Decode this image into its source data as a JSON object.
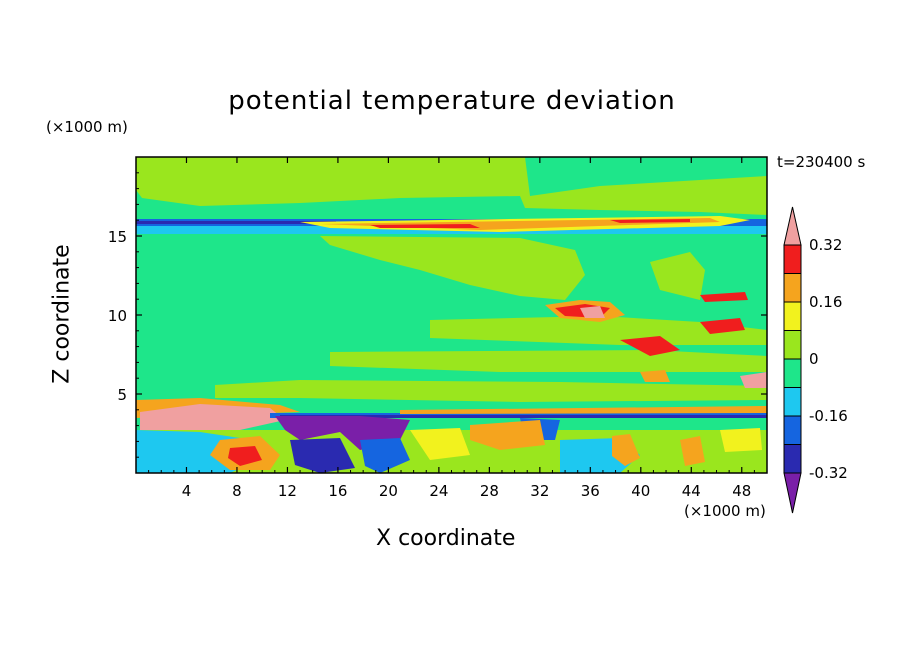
{
  "chart_data": {
    "type": "heatmap",
    "title": "potential temperature deviation",
    "xlabel": "X coordinate",
    "ylabel": "Z coordinate",
    "x_unit": "(×1000 m)",
    "y_unit": "(×1000 m)",
    "time_label": "t=230400 s",
    "xlim": [
      0,
      50
    ],
    "ylim": [
      0,
      20
    ],
    "x_ticks": [
      4,
      8,
      12,
      16,
      20,
      24,
      28,
      32,
      36,
      40,
      44,
      48
    ],
    "y_ticks": [
      5,
      10,
      15
    ],
    "colorbar": {
      "levels": [
        -0.4,
        -0.32,
        -0.24,
        -0.16,
        -0.08,
        0,
        0.08,
        0.16,
        0.24,
        0.32,
        0.4
      ],
      "labels": [
        "0.32",
        "0.16",
        "0",
        "-0.16",
        "-0.32"
      ],
      "label_values": [
        0.32,
        0.16,
        0,
        -0.16,
        -0.32
      ],
      "colors": [
        "#7a1fa8",
        "#2a2ab0",
        "#1565e0",
        "#1ec8f0",
        "#1ee68a",
        "#9ae61e",
        "#f2f21e",
        "#f5a41e",
        "#f01e1e",
        "#f0a0a0"
      ],
      "extend": "both"
    }
  }
}
